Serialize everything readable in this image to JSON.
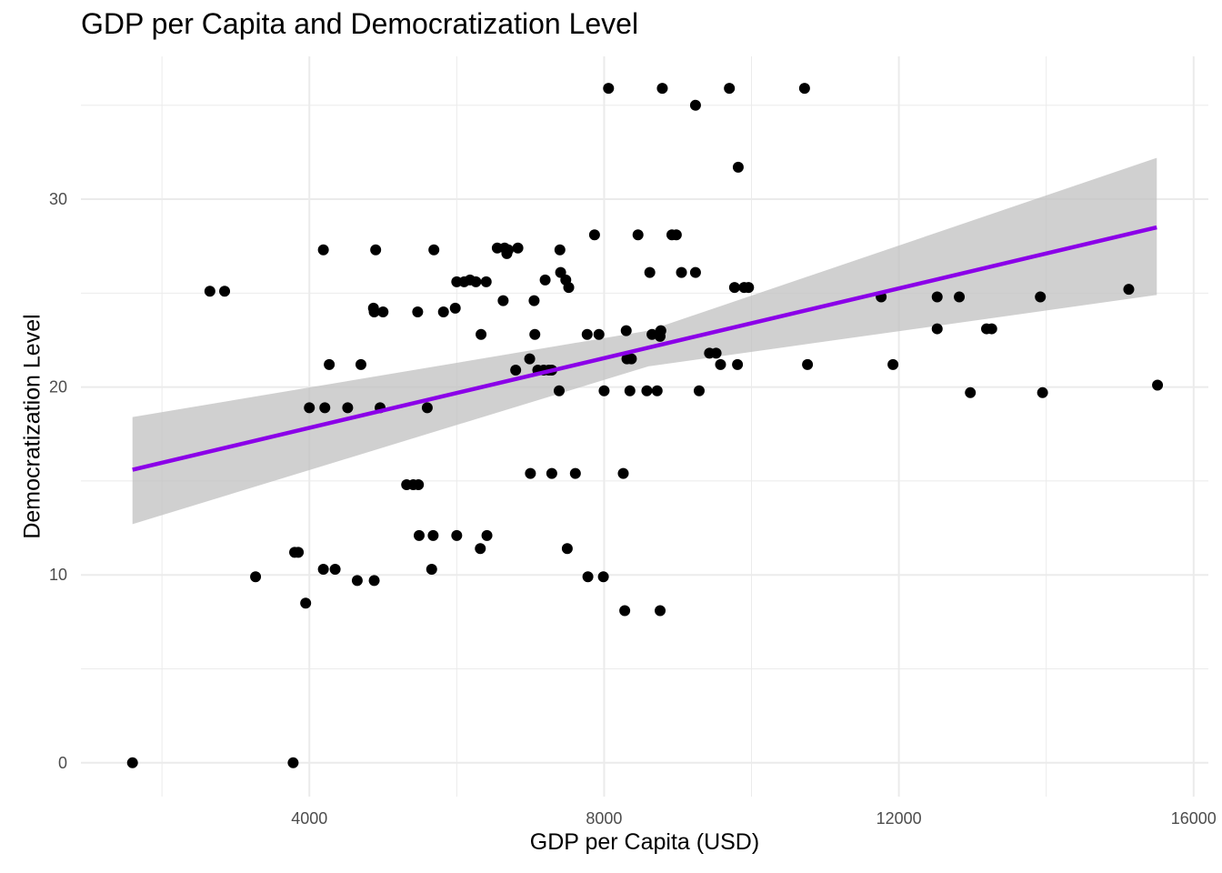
{
  "chart_data": {
    "type": "scatter",
    "title": "GDP per Capita and Democratization Level",
    "xlabel": "GDP per Capita (USD)",
    "ylabel": "Democratization Level",
    "xlim": [
      900,
      16200
    ],
    "ylim": [
      -1.8,
      37.6
    ],
    "x_ticks": [
      4000,
      8000,
      12000,
      16000
    ],
    "y_ticks": [
      0,
      10,
      20,
      30
    ],
    "x_minor": [
      2000,
      6000,
      10000,
      14000
    ],
    "y_minor": [
      5,
      15,
      25,
      35
    ],
    "grid": true,
    "colors": {
      "points": "#000000",
      "fit_line": "#8b00e8",
      "ribbon": "#c0c0c0",
      "grid": "#ebebeb"
    },
    "fit": {
      "method": "linear",
      "x": [
        1600,
        15500
      ],
      "y": [
        15.6,
        28.5
      ],
      "ci_lower": [
        12.7,
        24.9
      ],
      "ci_upper": [
        18.4,
        32.2
      ],
      "ci_mid_x": 8600,
      "ci_mid_lower": [
        21.1
      ],
      "ci_mid_upper": [
        23.0
      ]
    },
    "points": [
      [
        1600,
        0
      ],
      [
        3780,
        0
      ],
      [
        2650,
        25.1
      ],
      [
        2850,
        25.1
      ],
      [
        3270,
        9.9
      ],
      [
        3800,
        11.2
      ],
      [
        3850,
        11.2
      ],
      [
        3950,
        8.5
      ],
      [
        4000,
        18.9
      ],
      [
        4210,
        18.9
      ],
      [
        4520,
        18.9
      ],
      [
        4960,
        18.9
      ],
      [
        5600,
        18.9
      ],
      [
        4190,
        27.3
      ],
      [
        4900,
        27.3
      ],
      [
        5690,
        27.3
      ],
      [
        4190,
        10.3
      ],
      [
        4350,
        10.3
      ],
      [
        5660,
        10.3
      ],
      [
        4270,
        21.2
      ],
      [
        4700,
        21.2
      ],
      [
        4650,
        9.7
      ],
      [
        4880,
        9.7
      ],
      [
        4870,
        24.2
      ],
      [
        4880,
        24.0
      ],
      [
        5000,
        24.0
      ],
      [
        5470,
        24.0
      ],
      [
        5820,
        24.0
      ],
      [
        5980,
        24.2
      ],
      [
        5320,
        14.8
      ],
      [
        5410,
        14.8
      ],
      [
        5480,
        14.8
      ],
      [
        5490,
        12.1
      ],
      [
        5680,
        12.1
      ],
      [
        6000,
        12.1
      ],
      [
        6410,
        12.1
      ],
      [
        6000,
        25.6
      ],
      [
        6100,
        25.6
      ],
      [
        6180,
        25.7
      ],
      [
        6260,
        25.6
      ],
      [
        6400,
        25.6
      ],
      [
        6320,
        11.4
      ],
      [
        6330,
        22.8
      ],
      [
        6550,
        27.4
      ],
      [
        6650,
        27.4
      ],
      [
        6680,
        27.1
      ],
      [
        6700,
        27.3
      ],
      [
        6830,
        27.4
      ],
      [
        6630,
        24.6
      ],
      [
        6800,
        20.9
      ],
      [
        6990,
        21.5
      ],
      [
        7000,
        15.4
      ],
      [
        7290,
        15.4
      ],
      [
        7610,
        15.4
      ],
      [
        7050,
        24.6
      ],
      [
        7060,
        22.8
      ],
      [
        7100,
        20.9
      ],
      [
        7180,
        20.9
      ],
      [
        7250,
        20.9
      ],
      [
        7290,
        20.9
      ],
      [
        7200,
        25.7
      ],
      [
        7400,
        27.3
      ],
      [
        7410,
        26.1
      ],
      [
        7480,
        25.7
      ],
      [
        7520,
        25.3
      ],
      [
        7390,
        19.8
      ],
      [
        7500,
        11.4
      ],
      [
        7770,
        22.8
      ],
      [
        7930,
        22.8
      ],
      [
        7780,
        9.9
      ],
      [
        7990,
        9.9
      ],
      [
        7870,
        28.1
      ],
      [
        8000,
        19.8
      ],
      [
        8060,
        35.9
      ],
      [
        8260,
        15.4
      ],
      [
        8280,
        8.1
      ],
      [
        8300,
        23.0
      ],
      [
        8310,
        21.5
      ],
      [
        8370,
        21.5
      ],
      [
        8350,
        19.8
      ],
      [
        8460,
        28.1
      ],
      [
        8580,
        19.8
      ],
      [
        8720,
        19.8
      ],
      [
        8620,
        26.1
      ],
      [
        8650,
        22.8
      ],
      [
        8760,
        22.7
      ],
      [
        8770,
        23.0
      ],
      [
        8760,
        8.1
      ],
      [
        8790,
        35.9
      ],
      [
        8920,
        28.1
      ],
      [
        8980,
        28.1
      ],
      [
        9050,
        26.1
      ],
      [
        9240,
        26.1
      ],
      [
        9240,
        35.0
      ],
      [
        9290,
        19.8
      ],
      [
        9430,
        21.8
      ],
      [
        9520,
        21.8
      ],
      [
        9580,
        21.2
      ],
      [
        9700,
        35.9
      ],
      [
        9770,
        25.3
      ],
      [
        9810,
        21.2
      ],
      [
        9820,
        31.7
      ],
      [
        9900,
        25.3
      ],
      [
        9960,
        25.3
      ],
      [
        10720,
        35.9
      ],
      [
        10760,
        21.2
      ],
      [
        11760,
        24.8
      ],
      [
        11920,
        21.2
      ],
      [
        12520,
        24.8
      ],
      [
        12520,
        23.1
      ],
      [
        12820,
        24.8
      ],
      [
        12970,
        19.7
      ],
      [
        13190,
        23.1
      ],
      [
        13260,
        23.1
      ],
      [
        13920,
        24.8
      ],
      [
        13950,
        19.7
      ],
      [
        15120,
        25.2
      ],
      [
        15510,
        20.1
      ]
    ]
  }
}
